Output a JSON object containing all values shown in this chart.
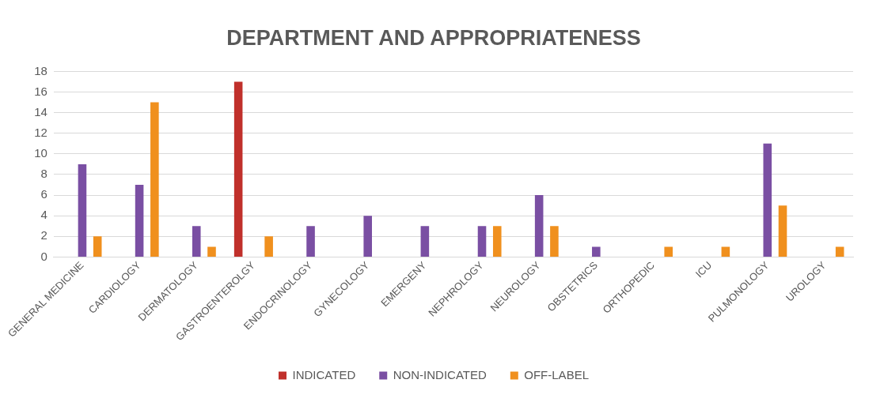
{
  "chart_data": {
    "type": "bar",
    "title": "DEPARTMENT AND APPROPRIATENESS",
    "categories": [
      "GENERAL MEDICINE",
      "CARDIOLOGY",
      "DERMATOLOGY",
      "GASTROENTEROLGY",
      "ENDOCRINOLOGY",
      "GYNECOLOGY",
      "EMERGENY",
      "NEPHROLOGY",
      "NEUROLOGY",
      "OBSTETRICS",
      "ORTHOPEDIC",
      "ICU",
      "PULMONOLOGY",
      "UROLOGY"
    ],
    "series": [
      {
        "name": "INDICATED",
        "color": "#c0302b",
        "values": [
          0,
          0,
          0,
          17,
          0,
          0,
          0,
          0,
          0,
          0,
          0,
          0,
          0,
          0
        ]
      },
      {
        "name": "NON-INDICATED",
        "color": "#7a4fa3",
        "values": [
          9,
          7,
          3,
          0,
          3,
          4,
          3,
          3,
          6,
          1,
          0,
          0,
          11,
          0
        ]
      },
      {
        "name": "OFF-LABEL",
        "color": "#f0901e",
        "values": [
          2,
          15,
          1,
          2,
          0,
          0,
          0,
          3,
          3,
          0,
          1,
          1,
          5,
          1
        ]
      }
    ],
    "ylim": [
      0,
      18
    ],
    "yticks": [
      0,
      2,
      4,
      6,
      8,
      10,
      12,
      14,
      16,
      18
    ],
    "grid": "y",
    "legend": "bottom"
  }
}
